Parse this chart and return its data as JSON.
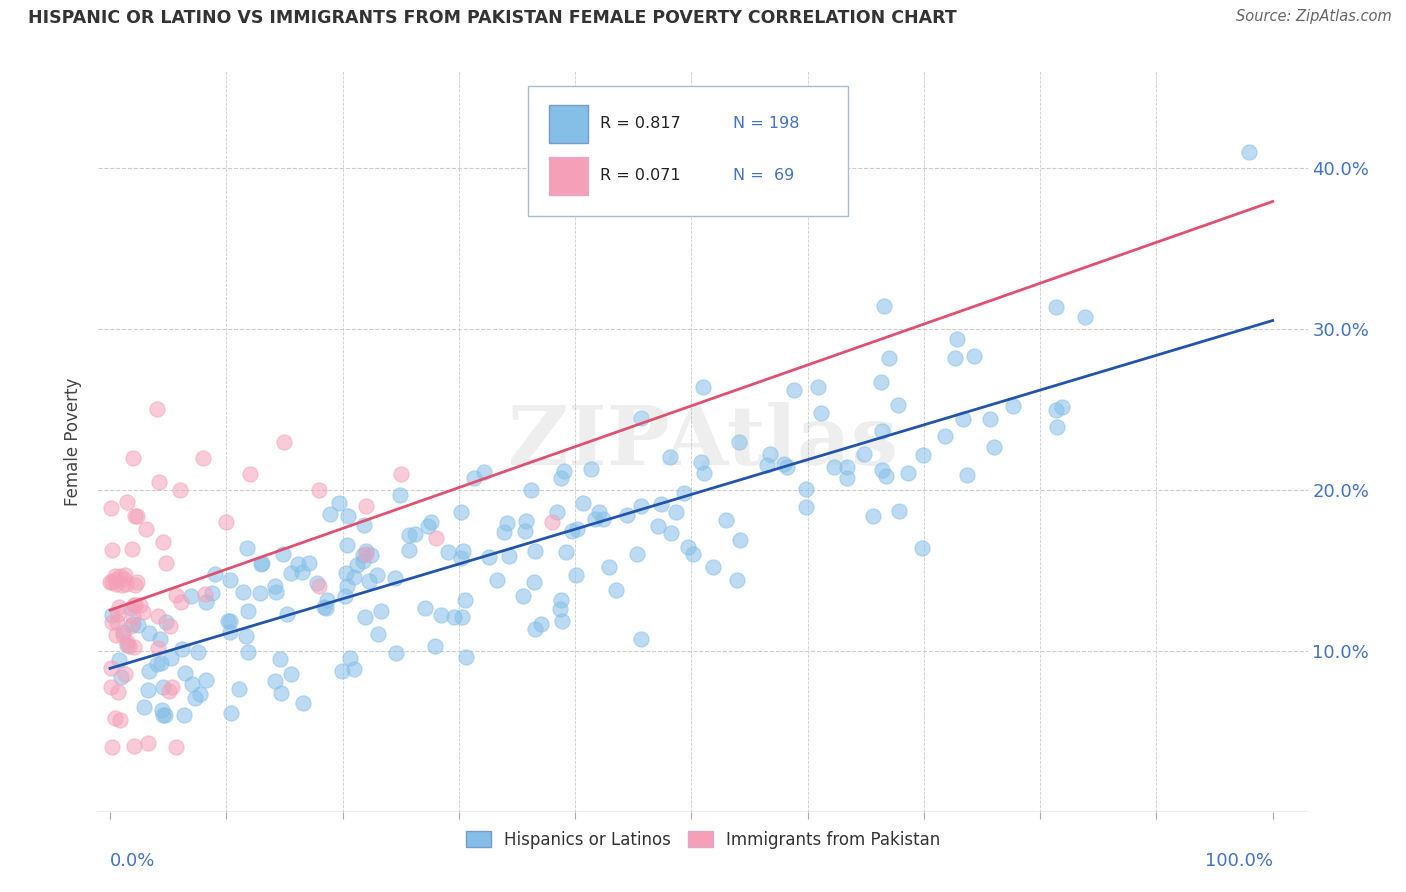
{
  "title": "HISPANIC OR LATINO VS IMMIGRANTS FROM PAKISTAN FEMALE POVERTY CORRELATION CHART",
  "source": "Source: ZipAtlas.com",
  "ylabel": "Female Poverty",
  "legend_label_blue": "Hispanics or Latinos",
  "legend_label_pink": "Immigrants from Pakistan",
  "legend_r_blue": "R = 0.817",
  "legend_n_blue": "N = 198",
  "legend_r_pink": "R = 0.071",
  "legend_n_pink": "N =  69",
  "blue_color": "#85bfe8",
  "pink_color": "#f5a0b8",
  "trend_blue_color": "#2255aa",
  "trend_pink_color": "#e05070",
  "watermark": "ZIPAtlas",
  "ytick_positions": [
    0.1,
    0.2,
    0.3,
    0.4
  ],
  "ytick_labels": [
    "10.0%",
    "20.0%",
    "30.0%",
    "40.0%"
  ],
  "ymin": 0.0,
  "ymax": 0.46,
  "xmin": -0.01,
  "xmax": 1.03,
  "background_color": "#ffffff",
  "grid_color": "#cccccc",
  "marker_size": 120,
  "marker_alpha": 0.55,
  "marker_lw": 0.8
}
